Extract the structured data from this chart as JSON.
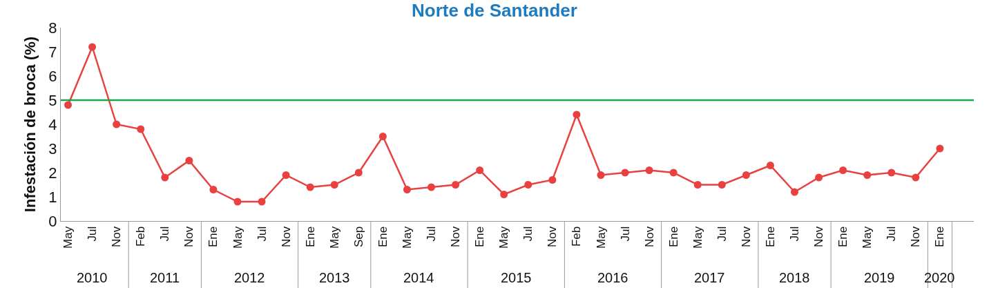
{
  "chart_data": {
    "type": "line",
    "title": "Norte de Santander",
    "ylabel": "Infestación de broca (%)",
    "categories": [
      "May",
      "Jul",
      "Nov",
      "Feb",
      "Jul",
      "Nov",
      "Ene",
      "May",
      "Jul",
      "Nov",
      "Ene",
      "May",
      "Sep",
      "Ene",
      "May",
      "Jul",
      "Nov",
      "Ene",
      "May",
      "Jul",
      "Nov",
      "Feb",
      "May",
      "Jul",
      "Nov",
      "Ene",
      "May",
      "Jul",
      "Nov",
      "Ene",
      "Jul",
      "Nov",
      "Ene",
      "May",
      "Jul",
      "Nov",
      "Ene"
    ],
    "series": [
      {
        "color": "#e8413f",
        "values": [
          4.8,
          7.2,
          4.0,
          3.8,
          1.8,
          2.5,
          1.3,
          0.8,
          0.8,
          1.9,
          1.4,
          1.5,
          2.0,
          3.5,
          1.3,
          1.4,
          1.5,
          2.1,
          1.1,
          1.5,
          1.7,
          4.4,
          1.9,
          2.0,
          2.1,
          2.0,
          1.5,
          1.5,
          1.9,
          2.3,
          1.2,
          1.8,
          2.1,
          1.9,
          2.0,
          1.8,
          3.0
        ]
      }
    ],
    "ylim": [
      0,
      8
    ],
    "yticks": [
      0,
      1,
      2,
      3,
      4,
      5,
      6,
      7,
      8
    ],
    "marker": "circle",
    "line_style": "solid",
    "ref_lines": [
      {
        "axis": "y",
        "value": 5,
        "color": "#1aa64a"
      }
    ],
    "annotations": [
      "2010",
      "2011",
      "2012",
      "2013",
      "2014",
      "2015",
      "2016",
      "2017",
      "2018",
      "2019",
      "2020"
    ]
  }
}
